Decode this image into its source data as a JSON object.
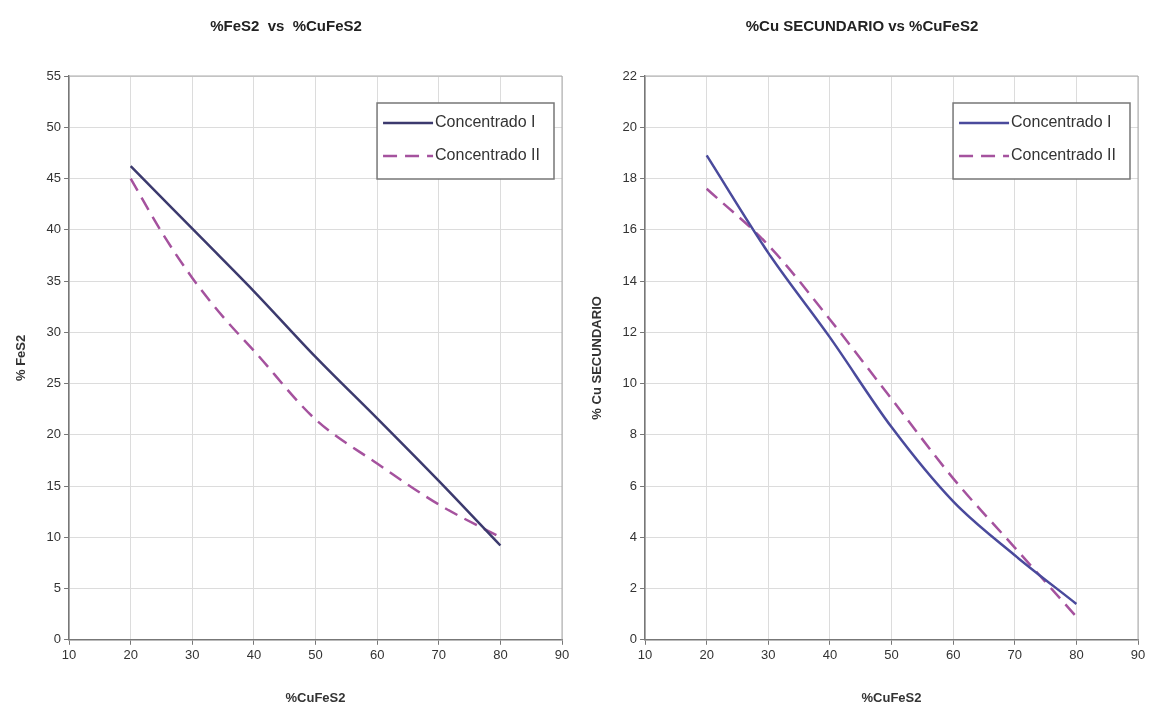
{
  "chart_data": [
    {
      "type": "line",
      "title": "%FeS2  vs  %CuFeS2",
      "xlabel": "%CuFeS2",
      "ylabel": "% FeS2",
      "xlim": [
        10,
        90
      ],
      "xticks": [
        10,
        20,
        30,
        40,
        50,
        60,
        70,
        80,
        90
      ],
      "ylim": [
        0,
        55
      ],
      "yticks": [
        0,
        5,
        10,
        15,
        20,
        25,
        30,
        35,
        40,
        45,
        50,
        55
      ],
      "grid": true,
      "legend": "top right",
      "marker": "none",
      "series": [
        {
          "name": "Concentrado I",
          "color": "#3c3a6e",
          "line_style": "solid",
          "x": [
            20,
            30,
            40,
            50,
            60,
            70,
            80
          ],
          "values": [
            46.2,
            40.1,
            34,
            27.6,
            21.6,
            15.5,
            9.2
          ]
        },
        {
          "name": "Concentrado II",
          "color": "#a5529e",
          "line_style": "dashed",
          "x": [
            20,
            25,
            30,
            35,
            40,
            50,
            60,
            70,
            80
          ],
          "values": [
            45,
            39.8,
            35.3,
            31.5,
            28.2,
            21.5,
            17.2,
            13.2,
            10
          ]
        }
      ]
    },
    {
      "type": "line",
      "title": "%Cu SECUNDARIO vs %CuFeS2",
      "xlabel": "%CuFeS2",
      "ylabel": "% Cu SECUNDARIO",
      "xlim": [
        10,
        90
      ],
      "xticks": [
        10,
        20,
        30,
        40,
        50,
        60,
        70,
        80,
        90
      ],
      "ylim": [
        0,
        22
      ],
      "yticks": [
        0,
        2,
        4,
        6,
        8,
        10,
        12,
        14,
        16,
        18,
        20,
        22
      ],
      "grid": true,
      "legend": "top right",
      "marker": "none",
      "series": [
        {
          "name": "Concentrado I",
          "color": "#4a4a9c",
          "line_style": "solid",
          "x": [
            20,
            30,
            40,
            50,
            60,
            70,
            80
          ],
          "values": [
            18.9,
            15.1,
            11.8,
            8.3,
            5.4,
            3.3,
            1.4
          ]
        },
        {
          "name": "Concentrado II",
          "color": "#a5529e",
          "line_style": "dashed",
          "x": [
            20,
            30,
            40,
            50,
            60,
            70,
            80
          ],
          "values": [
            17.6,
            15.4,
            12.5,
            9.4,
            6.3,
            3.6,
            0.9
          ]
        }
      ]
    }
  ]
}
